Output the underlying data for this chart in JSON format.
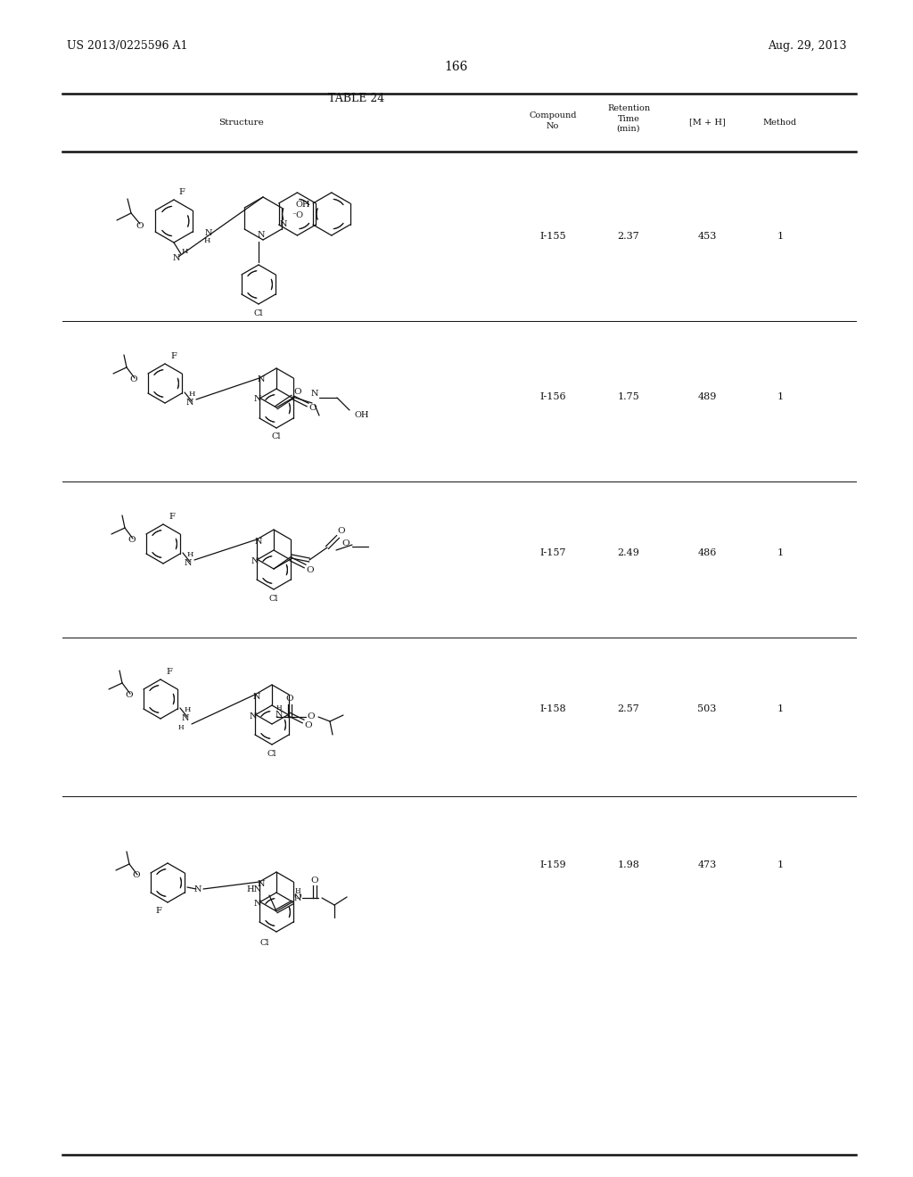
{
  "background_color": "#ffffff",
  "page_number": "166",
  "header_left": "US 2013/0225596 A1",
  "header_right": "Aug. 29, 2013",
  "table_title": "TABLE 24",
  "rows": [
    {
      "compound": "I-155",
      "retention": "2.37",
      "mh": "453",
      "method": "1"
    },
    {
      "compound": "I-156",
      "retention": "1.75",
      "mh": "489",
      "method": "1"
    },
    {
      "compound": "I-157",
      "retention": "2.49",
      "mh": "486",
      "method": "1"
    },
    {
      "compound": "I-158",
      "retention": "2.57",
      "mh": "503",
      "method": "1"
    },
    {
      "compound": "I-159",
      "retention": "1.98",
      "mh": "473",
      "method": "1"
    }
  ]
}
